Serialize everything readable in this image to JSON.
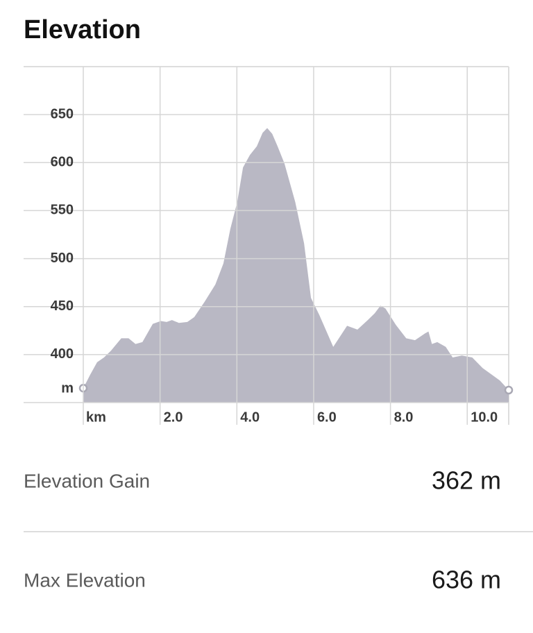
{
  "chart_data": {
    "type": "area",
    "title": "Elevation",
    "xlabel": "km",
    "ylabel": "m",
    "x": [
      0,
      0.18,
      0.36,
      0.54,
      0.72,
      0.99,
      1.18,
      1.36,
      1.54,
      1.81,
      2.02,
      2.17,
      2.31,
      2.49,
      2.71,
      2.89,
      3.16,
      3.44,
      3.65,
      3.83,
      4.01,
      4.16,
      4.34,
      4.52,
      4.67,
      4.79,
      4.92,
      5.06,
      5.24,
      5.52,
      5.75,
      5.93,
      6.15,
      6.51,
      6.69,
      6.87,
      7.14,
      7.41,
      7.59,
      7.74,
      7.87,
      8.14,
      8.41,
      8.64,
      8.9,
      8.99,
      9.08,
      9.22,
      9.44,
      9.62,
      9.86,
      10.13,
      10.4,
      10.71,
      10.85,
      11.08
    ],
    "values": [
      365,
      379,
      392,
      397,
      404,
      417,
      417,
      411,
      413,
      432,
      435,
      434,
      436,
      433,
      434,
      439,
      455,
      473,
      495,
      531,
      559,
      595,
      608,
      617,
      631,
      636,
      630,
      617,
      599,
      559,
      516,
      459,
      441,
      408,
      419,
      430,
      426,
      436,
      443,
      451,
      448,
      431,
      417,
      415,
      422,
      424,
      411,
      413,
      408,
      397,
      399,
      397,
      386,
      377,
      373,
      363
    ],
    "color": "#b9b8c4",
    "xlim": [
      0,
      11.08
    ],
    "ylim": [
      350,
      700
    ],
    "xticks": [
      {
        "value": 2,
        "label": "2.0"
      },
      {
        "value": 4,
        "label": "4.0"
      },
      {
        "value": 6,
        "label": "6.0"
      },
      {
        "value": 8,
        "label": "8.0"
      },
      {
        "value": 10,
        "label": "10.0"
      }
    ],
    "yticks": [
      400,
      450,
      500,
      550,
      600,
      650
    ],
    "grid": true
  },
  "stats": [
    {
      "label": "Elevation Gain",
      "value": "362 m"
    },
    {
      "label": "Max Elevation",
      "value": "636 m"
    }
  ]
}
